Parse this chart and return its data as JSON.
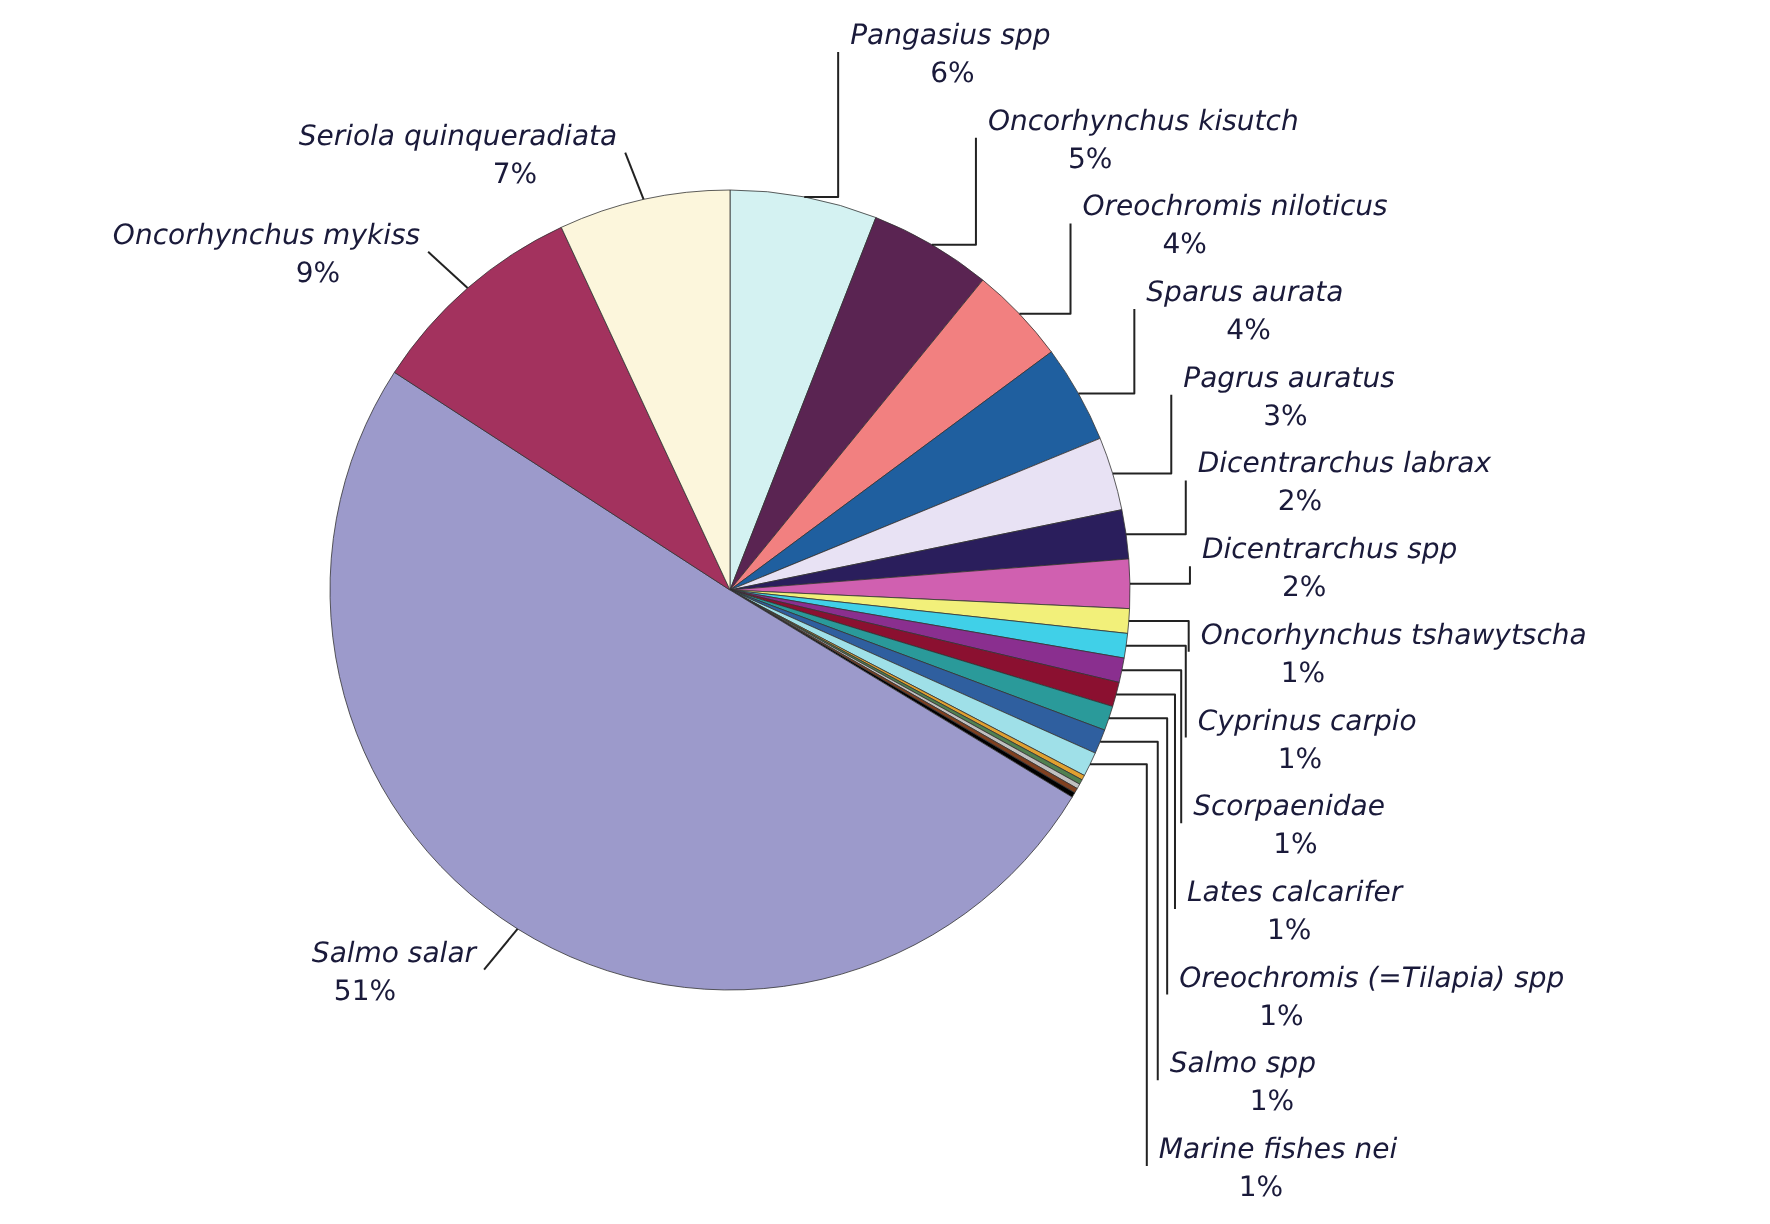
{
  "chart_data": {
    "type": "pie",
    "categories": [
      "Pangasius spp",
      "Oncorhynchus kisutch",
      "Oreochromis niloticus",
      "Sparus aurata",
      "Pagrus auratus",
      "Dicentrarchus labrax",
      "Dicentrarchus spp",
      "Oncorhynchus tshawytscha",
      "Cyprinus carpio",
      "Scorpaenidae",
      "Lates calcarifer",
      "Oreochromis (=Tilapia) spp",
      "Salmo spp",
      "Marine fishes nei",
      null,
      null,
      null,
      null,
      null,
      "Salmo salar",
      "Oncorhynchus mykiss",
      "Seriola quinqueradiata"
    ],
    "values": [
      6,
      5,
      4,
      4,
      3,
      2,
      2,
      1,
      1,
      1,
      1,
      1,
      1,
      1,
      0.2,
      0.2,
      0.2,
      0.2,
      0.2,
      51,
      9,
      7
    ],
    "value_labels": [
      "6%",
      "5%",
      "4%",
      "4%",
      "3%",
      "2%",
      "2%",
      "1%",
      "1%",
      "1%",
      "1%",
      "1%",
      "1%",
      "1%",
      null,
      null,
      null,
      null,
      null,
      "51%",
      "9%",
      "7%"
    ],
    "colors": [
      "#d4f2f2",
      "#5a2452",
      "#f28080",
      "#1f5f9f",
      "#e8e2f4",
      "#2a1e5c",
      "#d060b0",
      "#f2f07a",
      "#40d0e8",
      "#8a2f8f",
      "#8b1030",
      "#2a9a9a",
      "#2f5f9f",
      "#9fe0e8",
      "#e0a030",
      "#508050",
      "#c0c0c0",
      "#804020",
      "#000000",
      "#9c9acb",
      "#a3325e",
      "#fcf6dc"
    ]
  }
}
